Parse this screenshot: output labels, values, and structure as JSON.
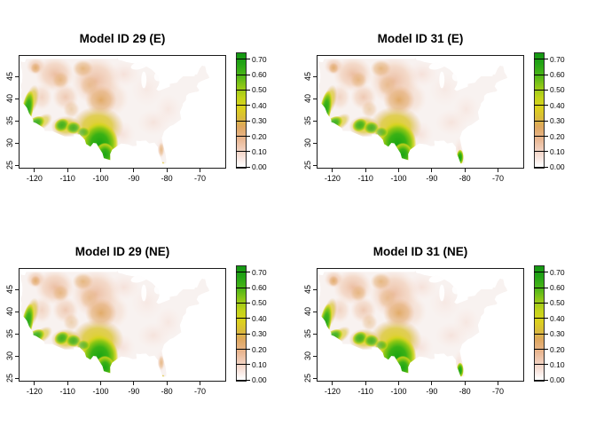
{
  "panels": [
    {
      "title": "Model ID 29 (E)",
      "florida_variant": "low"
    },
    {
      "title": "Model ID 31 (E)",
      "florida_variant": "high"
    },
    {
      "title": "Model ID 29 (NE)",
      "florida_variant": "low"
    },
    {
      "title": "Model ID 31 (NE)",
      "florida_variant": "high"
    }
  ],
  "x_axis": {
    "tick_labels": [
      "-120",
      "-110",
      "-100",
      "-90",
      "-80",
      "-70"
    ],
    "tick_values": [
      -120,
      -110,
      -100,
      -90,
      -80,
      -70
    ]
  },
  "y_axis": {
    "tick_labels": [
      "25",
      "30",
      "35",
      "40",
      "45"
    ],
    "tick_values": [
      25,
      30,
      35,
      40,
      45
    ]
  },
  "legend": {
    "tick_labels": [
      "0.00",
      "0.10",
      "0.20",
      "0.30",
      "0.40",
      "0.50",
      "0.60",
      "0.70"
    ],
    "tick_values": [
      0,
      0.1,
      0.2,
      0.3,
      0.4,
      0.5,
      0.6,
      0.7
    ],
    "value_range": [
      0,
      0.745
    ],
    "gradient_stops": [
      {
        "v": 0.0,
        "c": "#ffffff"
      },
      {
        "v": 0.05,
        "c": "#f9e8e2"
      },
      {
        "v": 0.1,
        "c": "#f2d3c4"
      },
      {
        "v": 0.18,
        "c": "#e9b690"
      },
      {
        "v": 0.26,
        "c": "#dfa75f"
      },
      {
        "v": 0.32,
        "c": "#d9bc3a"
      },
      {
        "v": 0.38,
        "c": "#dcd11d"
      },
      {
        "v": 0.45,
        "c": "#c4d41a"
      },
      {
        "v": 0.52,
        "c": "#93c818"
      },
      {
        "v": 0.6,
        "c": "#4ab517"
      },
      {
        "v": 0.68,
        "c": "#22a315"
      },
      {
        "v": 0.745,
        "c": "#139612"
      }
    ]
  },
  "chart_data": {
    "type": "heatmap",
    "subtype": "geographic choropleth of continental United States, 2x2 panel grid",
    "panels": [
      {
        "title": "Model ID 29 (E)",
        "south_florida_hotspot": false
      },
      {
        "title": "Model ID 31 (E)",
        "south_florida_hotspot": true
      },
      {
        "title": "Model ID 29 (NE)",
        "south_florida_hotspot": false
      },
      {
        "title": "Model ID 31 (NE)",
        "south_florida_hotspot": true
      }
    ],
    "x": {
      "name": "longitude",
      "tick_values": [
        -120,
        -110,
        -100,
        -90,
        -80,
        -70
      ],
      "range_est": [
        -124.8,
        -62.1
      ]
    },
    "y": {
      "name": "latitude",
      "tick_values": [
        25,
        30,
        35,
        40,
        45
      ],
      "range_est": [
        24.2,
        49.7
      ]
    },
    "color_scale": {
      "tick_values": [
        0.0,
        0.1,
        0.2,
        0.3,
        0.4,
        0.5,
        0.6,
        0.7
      ],
      "range": [
        0,
        0.745
      ],
      "low_color": "#ffffff",
      "mid_colors": [
        "#e9b690",
        "#dcd11d"
      ],
      "high_color": "#149a12"
    },
    "regions_estimated": [
      {
        "region": "south-central Texas / Rio Grande valley",
        "value": "0.55-0.75"
      },
      {
        "region": "central-coastal California strip",
        "value": "0.45-0.70"
      },
      {
        "region": "Arizona / New Mexico patches",
        "value": "0.35-0.60"
      },
      {
        "region": "Texas panhandle - Oklahoma yellow band",
        "value": "0.30-0.45"
      },
      {
        "region": "Kansas / Nebraska tan band",
        "value": "0.15-0.30"
      },
      {
        "region": "northern Rockies / Great Basin / Dakotas",
        "value": "0.05-0.20"
      },
      {
        "region": "Midwest and eastern US",
        "value": "0.00-0.10"
      },
      {
        "region": "south Florida (Model 31 panels only)",
        "value": "0.40-0.65"
      },
      {
        "region": "central Florida (Model 29 panels)",
        "value": "0.10-0.25"
      }
    ],
    "legend_position": "right of each panel",
    "grid": false
  }
}
